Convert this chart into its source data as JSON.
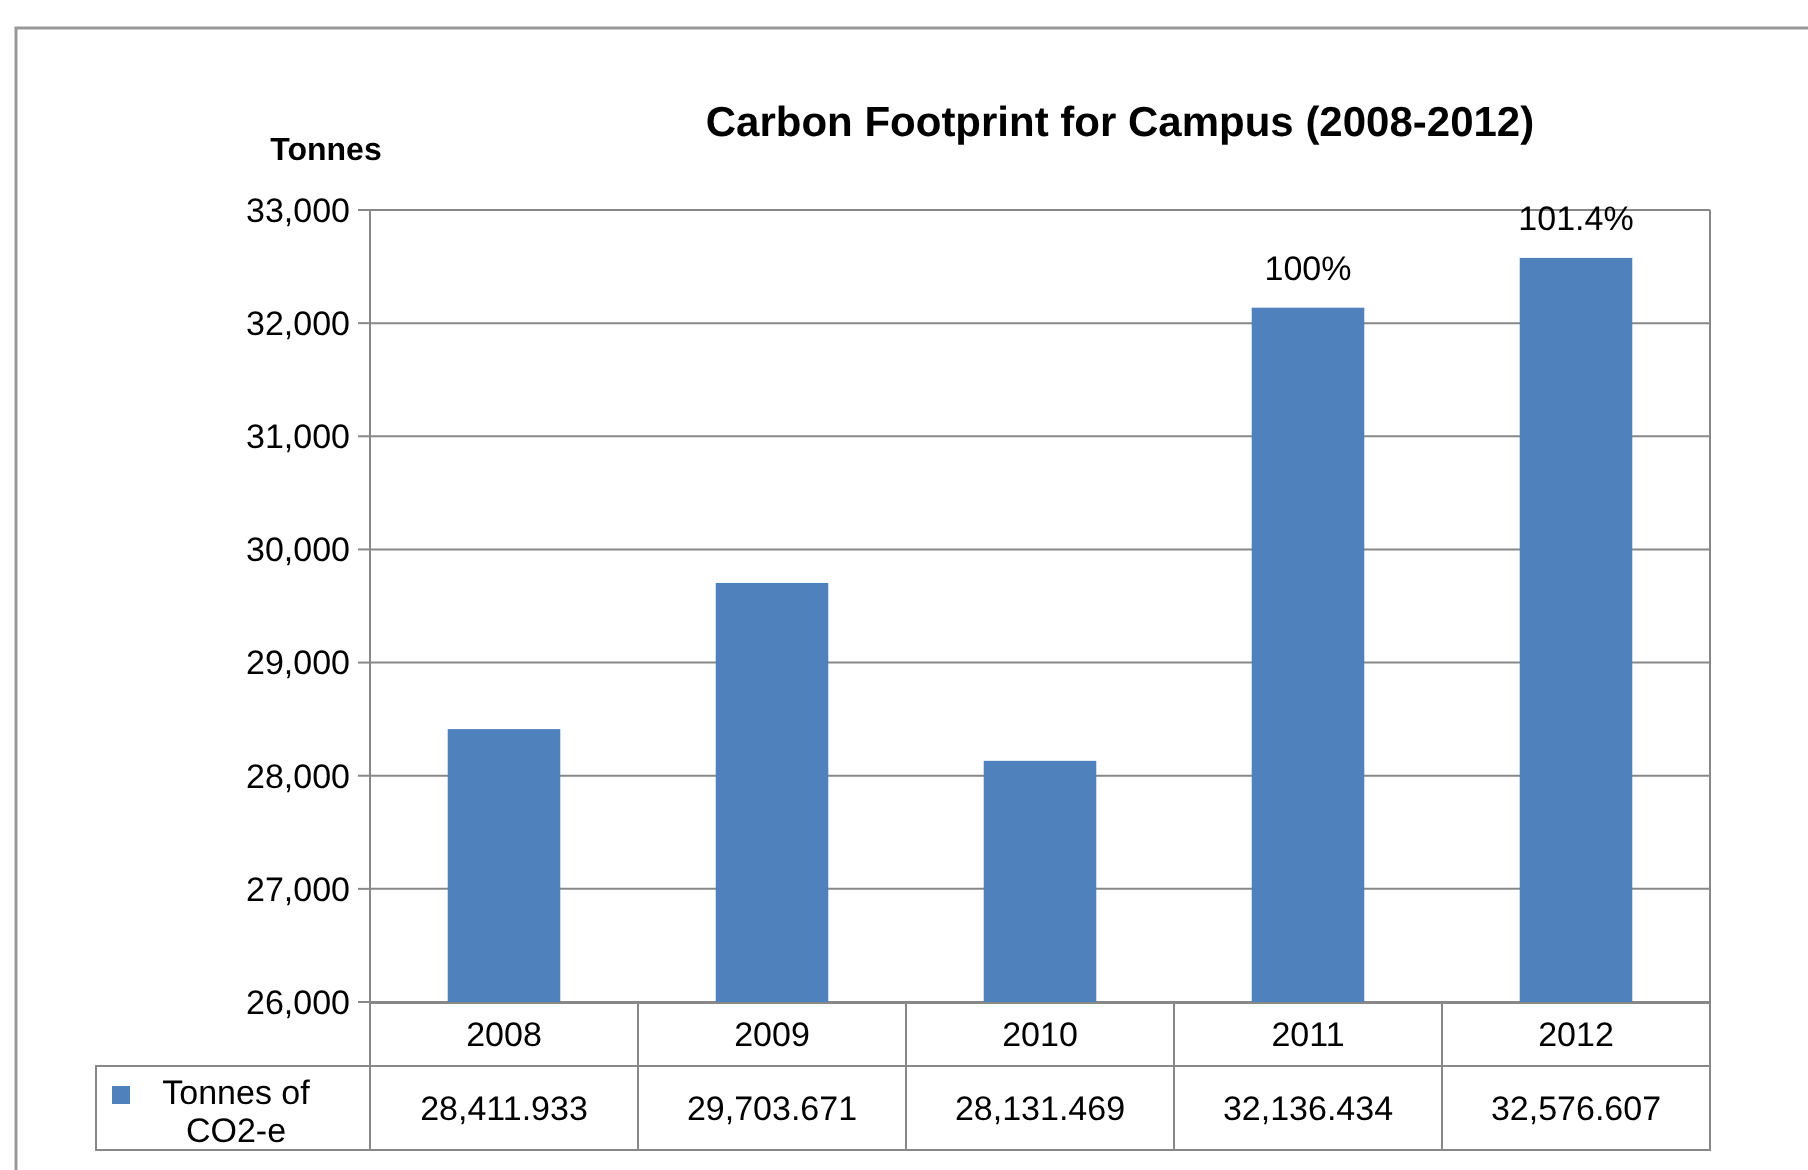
{
  "chart_data": {
    "type": "bar",
    "title": "Carbon Footprint for Campus (2008-2012)",
    "ylabel": "Tonnes",
    "categories": [
      "2008",
      "2009",
      "2010",
      "2011",
      "2012"
    ],
    "series": [
      {
        "name": "Tonnes of CO2-e",
        "color": "#4f81bd",
        "values": [
          28411.933,
          29703.671,
          28131.469,
          32136.434,
          32576.607
        ],
        "value_labels": [
          "28,411.933",
          "29,703.671",
          "28,131.469",
          "32,136.434",
          "32,576.607"
        ]
      }
    ],
    "ylim": [
      26000,
      33000
    ],
    "yticks": [
      {
        "value": 26000,
        "label": "26,000"
      },
      {
        "value": 27000,
        "label": "27,000"
      },
      {
        "value": 28000,
        "label": "28,000"
      },
      {
        "value": 29000,
        "label": "29,000"
      },
      {
        "value": 30000,
        "label": "30,000"
      },
      {
        "value": 31000,
        "label": "31,000"
      },
      {
        "value": 32000,
        "label": "32,000"
      },
      {
        "value": 33000,
        "label": "33,000"
      }
    ],
    "grid": "y",
    "legend": "bottom",
    "annotations": [
      {
        "text": "100%",
        "x": "2011",
        "y": 32136.434
      },
      {
        "text": "101.4%",
        "x": "2012",
        "y": 32576.607
      }
    ]
  }
}
